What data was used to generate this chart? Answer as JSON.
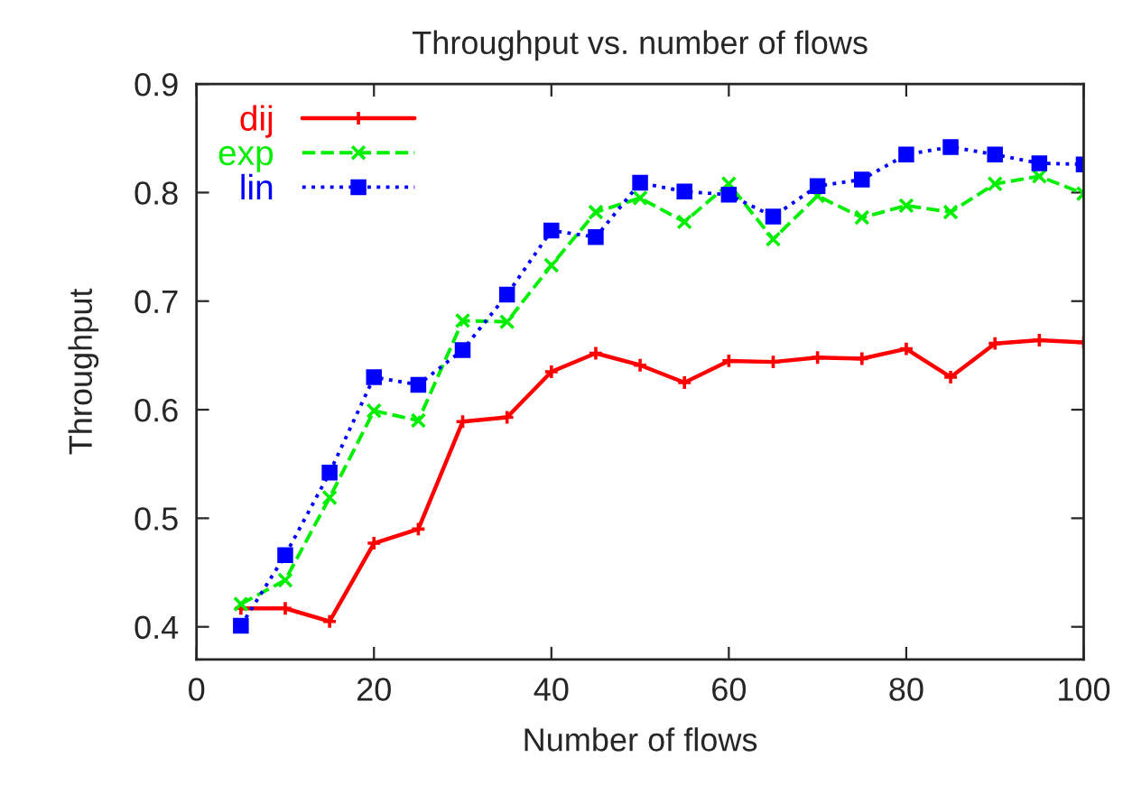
{
  "chart_data": {
    "type": "line",
    "title": "Throughput vs. number of flows",
    "xlabel": "Number of flows",
    "ylabel": "Throughput",
    "x": [
      5,
      10,
      15,
      20,
      25,
      30,
      35,
      40,
      45,
      50,
      55,
      60,
      65,
      70,
      75,
      80,
      85,
      90,
      95,
      100
    ],
    "series": [
      {
        "name": "dij",
        "color": "#ff0000",
        "marker": "plus",
        "line_style": "solid",
        "values": [
          0.417,
          0.417,
          0.405,
          0.477,
          0.49,
          0.589,
          0.593,
          0.635,
          0.652,
          0.641,
          0.625,
          0.645,
          0.644,
          0.648,
          0.647,
          0.656,
          0.63,
          0.661,
          0.664,
          0.662
        ]
      },
      {
        "name": "exp",
        "color": "#00ee00",
        "marker": "cross",
        "line_style": "dashed",
        "values": [
          0.421,
          0.443,
          0.519,
          0.599,
          0.59,
          0.682,
          0.681,
          0.733,
          0.782,
          0.795,
          0.773,
          0.808,
          0.757,
          0.797,
          0.777,
          0.788,
          0.782,
          0.808,
          0.815,
          0.799
        ]
      },
      {
        "name": "lin",
        "color": "#0000ff",
        "marker": "square",
        "line_style": "dotted",
        "values": [
          0.401,
          0.466,
          0.542,
          0.63,
          0.623,
          0.655,
          0.706,
          0.765,
          0.759,
          0.809,
          0.801,
          0.798,
          0.778,
          0.806,
          0.812,
          0.835,
          0.842,
          0.835,
          0.827,
          0.826
        ]
      }
    ],
    "xlim": [
      0,
      100
    ],
    "xticks": [
      0,
      20,
      40,
      60,
      80,
      100
    ],
    "ylim": [
      0.37,
      0.9
    ],
    "yticks": [
      0.4,
      0.5,
      0.6,
      0.7,
      0.8,
      0.9
    ],
    "grid": false,
    "legend": "top left"
  }
}
